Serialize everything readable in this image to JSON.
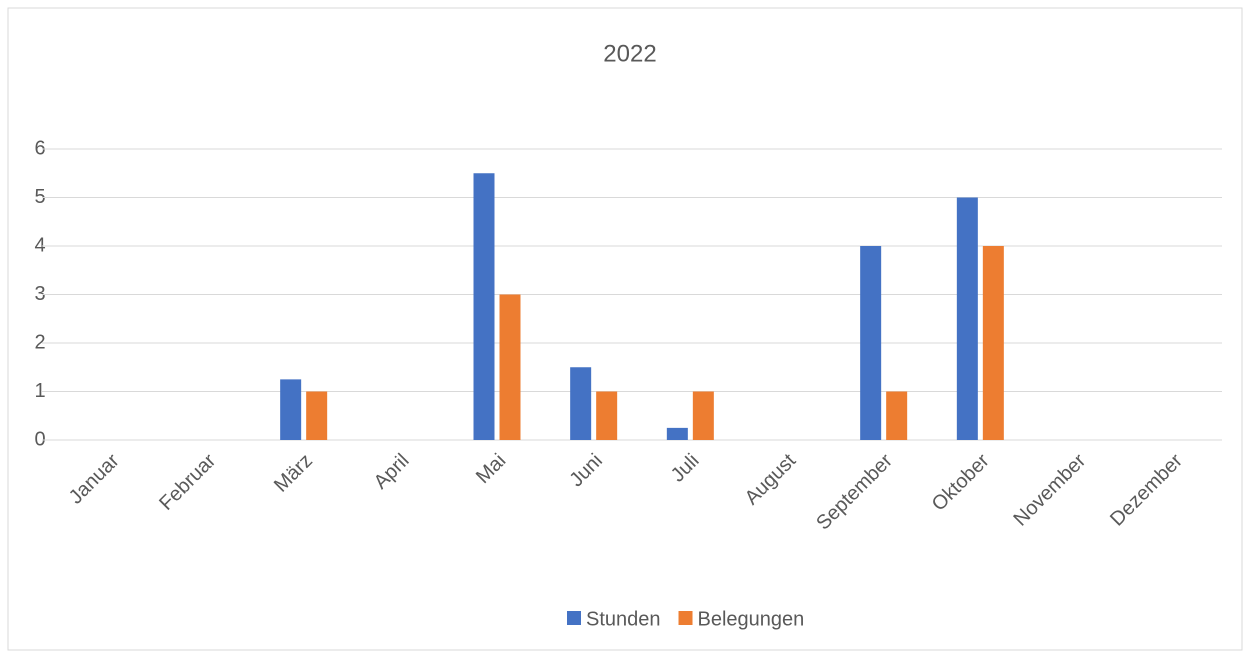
{
  "chart_data": {
    "type": "bar",
    "title": "2022",
    "categories": [
      "Januar",
      "Februar",
      "März",
      "April",
      "Mai",
      "Juni",
      "Juli",
      "August",
      "September",
      "Oktober",
      "November",
      "Dezember"
    ],
    "series": [
      {
        "name": "Stunden",
        "color": "#4472c4",
        "values": [
          0,
          0,
          1.25,
          0,
          5.5,
          1.5,
          0.25,
          0,
          4,
          5,
          0,
          0
        ]
      },
      {
        "name": "Belegungen",
        "color": "#ed7d31",
        "values": [
          0,
          0,
          1,
          0,
          3,
          1,
          1,
          0,
          1,
          4,
          0,
          0
        ]
      }
    ],
    "ylim": [
      0,
      6
    ],
    "yticks": [
      0,
      1,
      2,
      3,
      4,
      5,
      6
    ],
    "grid": true,
    "legend": "bottom"
  }
}
